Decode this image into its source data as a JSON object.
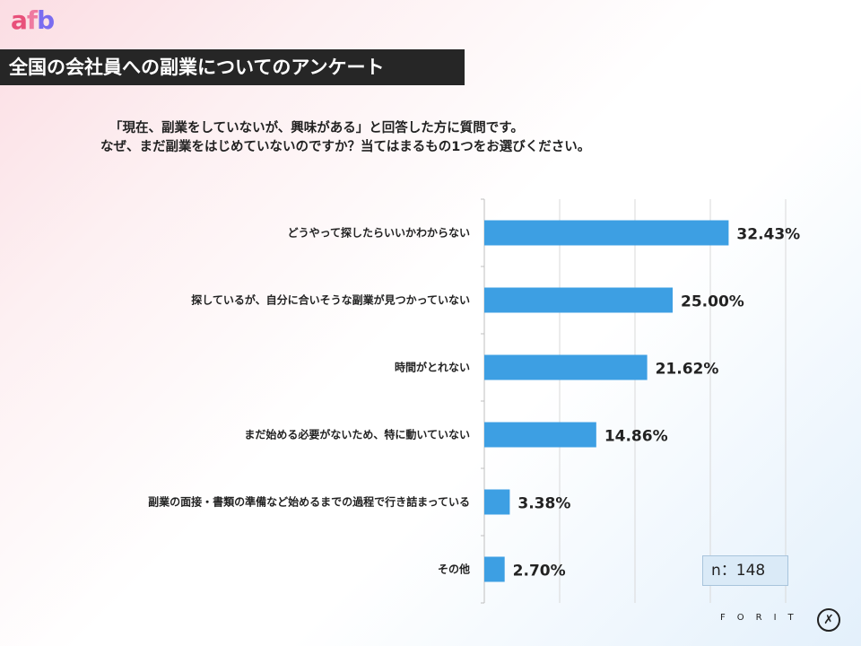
{
  "logo": {
    "text": "afb",
    "colors": [
      "#e8507a",
      "#ef7aa0",
      "#7a6cf0"
    ]
  },
  "header": {
    "title": "全国の会社員への副業についてのアンケート"
  },
  "question": {
    "line1": "「現在、副業をしていないが、興味がある」と回答した方に質問です。",
    "line2": "なぜ、まだ副業をはじめていないのですか？当てはまるもの1つをお選びください。"
  },
  "sample": {
    "label": "n：148"
  },
  "brand": {
    "text": "FORIT",
    "mark_icon": "running-figure-icon"
  },
  "colors": {
    "bar": "#3d9fe3",
    "title_bg": "#262626",
    "grid": "#d9d9d9"
  },
  "chart_data": {
    "type": "bar",
    "orientation": "horizontal",
    "categories": [
      "どうやって探したらいいかわからない",
      "探しているが、自分に合いそうな副業が見つかっていない",
      "時間がとれない",
      "まだ始める必要がないため、特に動いていない",
      "副業の面接・書類の準備など始めるまでの過程で行き詰まっている",
      "その他"
    ],
    "values": [
      32.43,
      25.0,
      21.62,
      14.86,
      3.38,
      2.7
    ],
    "value_labels": [
      "32.43%",
      "25.00%",
      "21.62%",
      "14.86%",
      "3.38%",
      "2.70%"
    ],
    "xlim": [
      0,
      40
    ],
    "grid": true,
    "legend": "none"
  }
}
